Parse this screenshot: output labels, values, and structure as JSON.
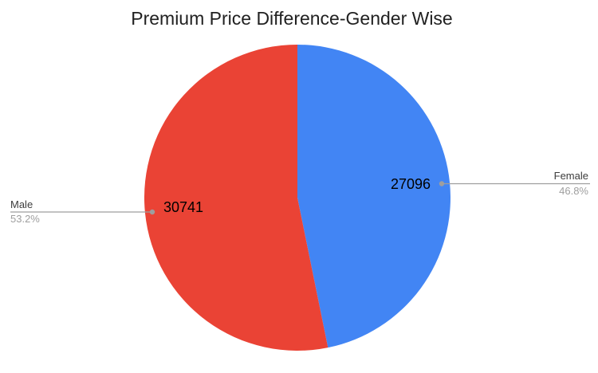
{
  "chart_data": {
    "type": "pie",
    "title": "Premium Price Difference-Gender Wise",
    "slices": [
      {
        "label": "Female",
        "value": 27096,
        "pct": 46.8,
        "pct_label": "46.8%",
        "color": "#4285F4"
      },
      {
        "label": "Male",
        "value": 30741,
        "pct": 53.2,
        "pct_label": "53.2%",
        "color": "#EA4335"
      }
    ],
    "start_angle_deg": 0,
    "direction": "clockwise",
    "legend_position": "outside-labels-with-leader-lines",
    "background_color": "#ffffff",
    "title_color": "#212121",
    "category_label_color": "#3c3c3c",
    "percent_label_color": "#9e9e9e",
    "value_label_color": "#000000",
    "leader_line_color": "#9e9e9e"
  }
}
